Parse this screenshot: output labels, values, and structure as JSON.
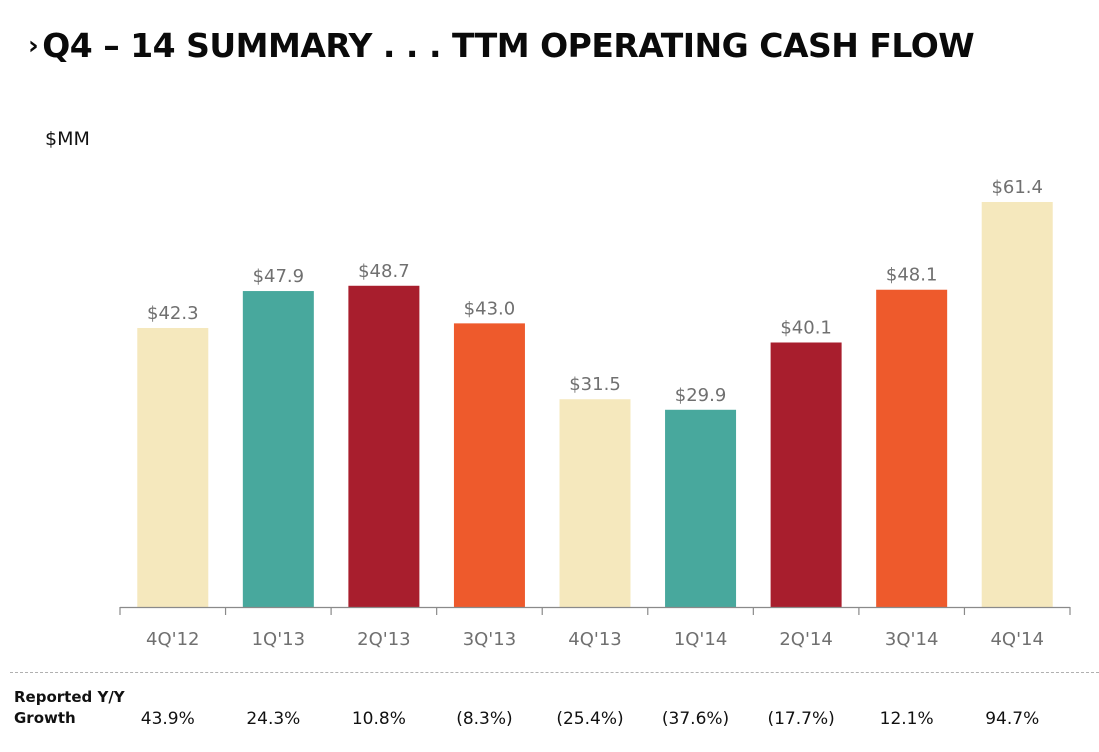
{
  "title": {
    "chevron": "›",
    "text": "Q4 – 14 SUMMARY . . . TTM OPERATING CASH FLOW"
  },
  "chart_data": {
    "type": "bar",
    "title": "Q4 – 14 SUMMARY . . . TTM OPERATING CASH FLOW",
    "ylabel": "$MM",
    "xlabel": "",
    "categories": [
      "4Q'12",
      "1Q'13",
      "2Q'13",
      "3Q'13",
      "4Q'13",
      "1Q'14",
      "2Q'14",
      "3Q'14",
      "4Q'14"
    ],
    "values": [
      42.3,
      47.9,
      48.7,
      43.0,
      31.5,
      29.9,
      40.1,
      48.1,
      61.4
    ],
    "data_labels": [
      "$42.3",
      "$47.9",
      "$48.7",
      "$43.0",
      "$31.5",
      "$29.9",
      "$40.1",
      "$48.1",
      "$61.4"
    ],
    "bar_colors": [
      "#f5e8bd",
      "#48a89d",
      "#a81e2d",
      "#ee5a2c",
      "#f5e8bd",
      "#48a89d",
      "#a81e2d",
      "#ee5a2c",
      "#f5e8bd"
    ],
    "ylim": [
      0,
      62
    ],
    "grid": false,
    "legend": "none"
  },
  "growth": {
    "label_line1": "Reported Y/Y",
    "label_line2": "Growth",
    "values": [
      "43.9%",
      "24.3%",
      "10.8%",
      "(8.3%)",
      "(25.4%)",
      "(37.6%)",
      "(17.7%)",
      "12.1%",
      "94.7%"
    ]
  }
}
